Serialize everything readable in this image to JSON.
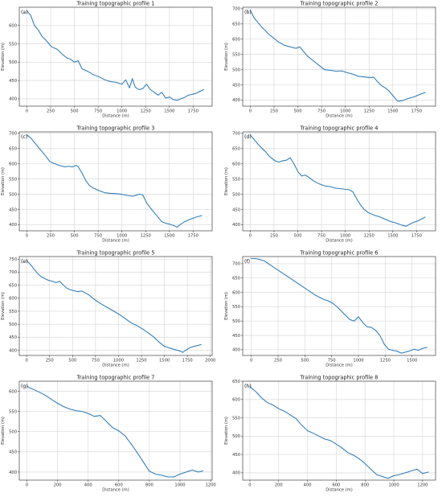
{
  "chart_data": [
    {
      "type": "line",
      "panel_label": "(a)",
      "title": "Training topographic profile 1",
      "xlabel": "Distance (m)",
      "ylabel": "Elevation (m)",
      "xlim": [
        -80,
        1950
      ],
      "ylim": [
        380,
        650
      ],
      "xticks": [
        0,
        250,
        500,
        750,
        1000,
        1250,
        1500,
        1750
      ],
      "yticks": [
        400,
        450,
        500,
        550,
        600
      ],
      "series": [
        {
          "x": [
            0,
            40,
            80,
            120,
            160,
            200,
            260,
            320,
            380,
            420,
            460,
            500,
            540,
            580,
            640,
            700,
            760,
            820,
            880,
            940,
            1000,
            1040,
            1080,
            1110,
            1140,
            1180,
            1220,
            1260,
            1300,
            1340,
            1380,
            1420,
            1460,
            1500,
            1540,
            1580,
            1620,
            1660,
            1700,
            1740,
            1780,
            1820,
            1860
          ],
          "y": [
            640,
            628,
            600,
            588,
            570,
            560,
            542,
            535,
            520,
            512,
            508,
            500,
            504,
            482,
            475,
            466,
            460,
            452,
            447,
            445,
            440,
            452,
            430,
            455,
            432,
            425,
            428,
            440,
            425,
            418,
            410,
            418,
            402,
            405,
            398,
            396,
            400,
            404,
            410,
            412,
            415,
            420,
            425
          ]
        }
      ]
    },
    {
      "type": "line",
      "panel_label": "(b)",
      "title": "Training topographic profile 2",
      "xlabel": "Distance (m)",
      "ylabel": "Elevation (m)",
      "xlim": [
        -80,
        1950
      ],
      "ylim": [
        380,
        705
      ],
      "xticks": [
        0,
        250,
        500,
        750,
        1000,
        1250,
        1500,
        1750
      ],
      "yticks": [
        400,
        450,
        500,
        550,
        600,
        650,
        700
      ],
      "series": [
        {
          "x": [
            0,
            40,
            80,
            120,
            160,
            200,
            260,
            300,
            360,
            420,
            480,
            520,
            560,
            600,
            660,
            720,
            780,
            840,
            900,
            960,
            1020,
            1080,
            1140,
            1200,
            1260,
            1300,
            1340,
            1380,
            1420,
            1460,
            1500,
            1540,
            1560,
            1600,
            1660,
            1720,
            1780,
            1840
          ],
          "y": [
            695,
            670,
            655,
            640,
            628,
            615,
            600,
            590,
            580,
            575,
            570,
            575,
            560,
            545,
            530,
            515,
            500,
            498,
            495,
            496,
            490,
            485,
            478,
            476,
            474,
            475,
            460,
            448,
            440,
            430,
            415,
            400,
            396,
            398,
            405,
            410,
            418,
            425
          ]
        }
      ]
    },
    {
      "type": "line",
      "panel_label": "(c)",
      "title": "Training topographic profile 3",
      "xlabel": "Distance (m)",
      "ylabel": "Elevation (m)",
      "xlim": [
        -80,
        1950
      ],
      "ylim": [
        380,
        705
      ],
      "xticks": [
        0,
        250,
        500,
        750,
        1000,
        1250,
        1500,
        1750
      ],
      "yticks": [
        400,
        450,
        500,
        550,
        600,
        650,
        700
      ],
      "series": [
        {
          "x": [
            0,
            40,
            80,
            120,
            160,
            200,
            240,
            280,
            340,
            400,
            440,
            480,
            520,
            540,
            580,
            620,
            660,
            700,
            760,
            820,
            880,
            940,
            1000,
            1060,
            1120,
            1180,
            1220,
            1260,
            1300,
            1340,
            1380,
            1420,
            1460,
            1500,
            1540,
            1580,
            1620,
            1660,
            1720,
            1780,
            1840
          ],
          "y": [
            695,
            685,
            670,
            655,
            640,
            625,
            608,
            602,
            595,
            590,
            592,
            590,
            595,
            590,
            570,
            545,
            528,
            520,
            512,
            505,
            503,
            502,
            500,
            496,
            494,
            500,
            498,
            472,
            455,
            440,
            425,
            410,
            405,
            402,
            398,
            392,
            402,
            410,
            418,
            425,
            430
          ]
        }
      ]
    },
    {
      "type": "line",
      "panel_label": "(d)",
      "title": "Training topographic profile 4",
      "xlabel": "Distance (m)",
      "ylabel": "Elevation (m)",
      "xlim": [
        -80,
        1950
      ],
      "ylim": [
        380,
        705
      ],
      "xticks": [
        0,
        250,
        500,
        750,
        1000,
        1250,
        1500,
        1750
      ],
      "yticks": [
        400,
        450,
        500,
        550,
        600,
        650,
        700
      ],
      "series": [
        {
          "x": [
            0,
            40,
            80,
            120,
            160,
            200,
            260,
            300,
            340,
            380,
            420,
            460,
            500,
            540,
            580,
            620,
            660,
            720,
            780,
            840,
            900,
            960,
            1000,
            1040,
            1080,
            1120,
            1160,
            1200,
            1240,
            1300,
            1360,
            1420,
            1480,
            1540,
            1600,
            1640,
            1680,
            1720,
            1760,
            1800,
            1840
          ],
          "y": [
            695,
            680,
            665,
            652,
            640,
            625,
            610,
            606,
            610,
            612,
            620,
            600,
            575,
            560,
            563,
            555,
            545,
            535,
            528,
            525,
            520,
            518,
            516,
            515,
            508,
            485,
            465,
            450,
            440,
            432,
            426,
            418,
            410,
            405,
            398,
            395,
            402,
            408,
            412,
            418,
            425
          ]
        }
      ]
    },
    {
      "type": "line",
      "panel_label": "(e)",
      "title": "Training topographic profile 5",
      "xlabel": "Distance (m)",
      "ylabel": "Elevation (m)",
      "xlim": [
        -80,
        2020
      ],
      "ylim": [
        380,
        760
      ],
      "xticks": [
        0,
        250,
        500,
        750,
        1000,
        1250,
        1500,
        1750,
        2000
      ],
      "yticks": [
        400,
        450,
        500,
        550,
        600,
        650,
        700,
        750
      ],
      "series": [
        {
          "x": [
            0,
            40,
            80,
            120,
            160,
            200,
            240,
            280,
            320,
            360,
            400,
            440,
            480,
            520,
            560,
            600,
            640,
            680,
            720,
            780,
            840,
            900,
            960,
            1020,
            1080,
            1140,
            1200,
            1260,
            1320,
            1380,
            1440,
            1500,
            1560,
            1620,
            1660,
            1700,
            1740,
            1780,
            1820,
            1860,
            1900
          ],
          "y": [
            745,
            730,
            712,
            695,
            682,
            675,
            668,
            665,
            660,
            665,
            650,
            638,
            632,
            628,
            625,
            628,
            620,
            612,
            600,
            585,
            572,
            560,
            548,
            535,
            520,
            505,
            495,
            482,
            468,
            452,
            432,
            415,
            408,
            402,
            398,
            392,
            402,
            410,
            415,
            418,
            422
          ]
        }
      ]
    },
    {
      "type": "line",
      "panel_label": "(f)",
      "title": "Training topographic profile 6",
      "xlabel": "Distance (m)",
      "ylabel": "Elevation (m)",
      "xlim": [
        -80,
        1720
      ],
      "ylim": [
        380,
        725
      ],
      "xticks": [
        0,
        250,
        500,
        750,
        1000,
        1250,
        1500
      ],
      "yticks": [
        400,
        450,
        500,
        550,
        600,
        650,
        700
      ],
      "series": [
        {
          "x": [
            0,
            40,
            80,
            120,
            160,
            200,
            240,
            280,
            320,
            360,
            400,
            440,
            480,
            520,
            560,
            600,
            640,
            680,
            720,
            760,
            800,
            840,
            880,
            920,
            960,
            1000,
            1040,
            1080,
            1120,
            1160,
            1200,
            1240,
            1280,
            1320,
            1360,
            1400,
            1440,
            1480,
            1520,
            1560,
            1600,
            1640
          ],
          "y": [
            718,
            718,
            715,
            710,
            700,
            690,
            680,
            670,
            660,
            650,
            640,
            630,
            620,
            610,
            600,
            590,
            582,
            575,
            570,
            562,
            550,
            535,
            520,
            505,
            500,
            515,
            495,
            480,
            478,
            468,
            450,
            420,
            402,
            398,
            395,
            388,
            392,
            396,
            402,
            398,
            405,
            408
          ]
        }
      ]
    },
    {
      "type": "line",
      "panel_label": "(g)",
      "title": "Training topographic profile 7",
      "xlabel": "Distance (m)",
      "ylabel": "Elevation (m)",
      "xlim": [
        -50,
        1210
      ],
      "ylim": [
        380,
        625
      ],
      "xticks": [
        0,
        200,
        400,
        600,
        800,
        1000,
        1200
      ],
      "yticks": [
        400,
        450,
        500,
        550,
        600
      ],
      "series": [
        {
          "x": [
            0,
            40,
            80,
            120,
            160,
            200,
            240,
            280,
            320,
            360,
            400,
            440,
            480,
            520,
            560,
            600,
            640,
            680,
            720,
            760,
            800,
            840,
            880,
            920,
            960,
            1000,
            1040,
            1080,
            1120,
            1150
          ],
          "y": [
            612,
            605,
            598,
            590,
            580,
            570,
            562,
            556,
            552,
            550,
            545,
            538,
            540,
            525,
            510,
            502,
            490,
            470,
            448,
            425,
            402,
            395,
            392,
            388,
            388,
            395,
            400,
            405,
            400,
            403
          ]
        }
      ]
    },
    {
      "type": "line",
      "panel_label": "(h)",
      "title": "Training topographic profile 8",
      "xlabel": "Distance (m)",
      "ylabel": "Elevation (m)",
      "xlim": [
        -50,
        1290
      ],
      "ylim": [
        380,
        650
      ],
      "xticks": [
        0,
        200,
        400,
        600,
        800,
        1000,
        1200
      ],
      "yticks": [
        400,
        450,
        500,
        550,
        600,
        650
      ],
      "series": [
        {
          "x": [
            0,
            40,
            80,
            120,
            160,
            200,
            240,
            280,
            320,
            360,
            400,
            440,
            480,
            520,
            560,
            600,
            640,
            680,
            720,
            760,
            800,
            840,
            880,
            920,
            960,
            1000,
            1040,
            1080,
            1120,
            1160,
            1200,
            1240
          ],
          "y": [
            635,
            622,
            605,
            592,
            585,
            575,
            568,
            558,
            548,
            530,
            515,
            508,
            500,
            492,
            488,
            478,
            468,
            455,
            448,
            438,
            425,
            410,
            395,
            390,
            385,
            392,
            395,
            400,
            405,
            410,
            398,
            402
          ]
        }
      ]
    }
  ]
}
